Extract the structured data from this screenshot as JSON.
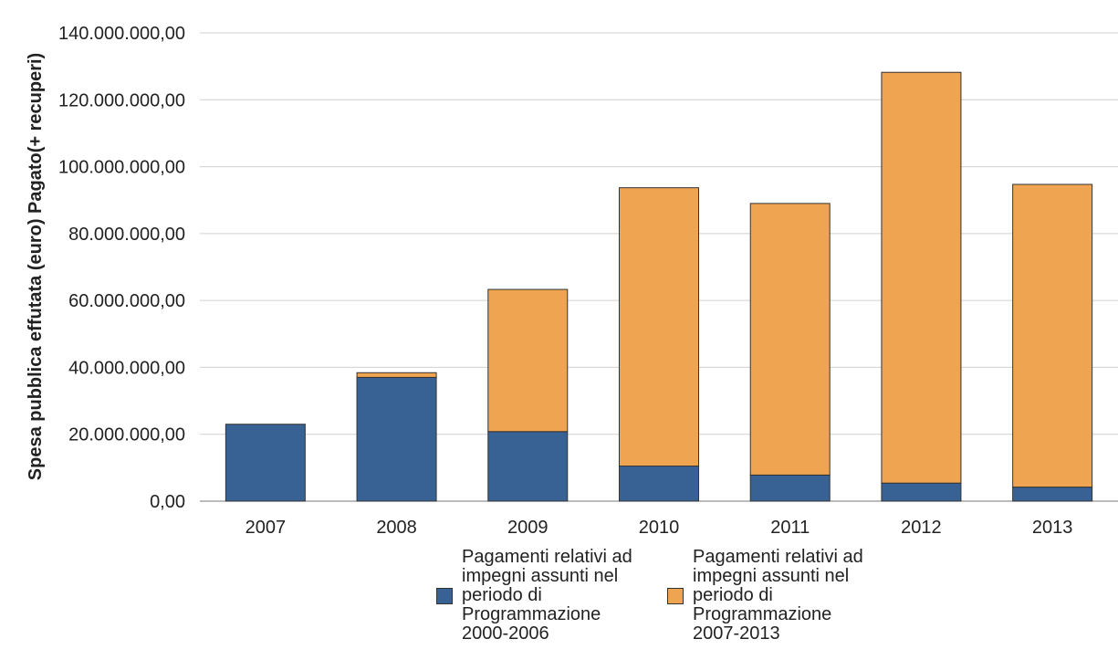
{
  "chart_data": {
    "type": "bar",
    "stacked": true,
    "title": "",
    "xlabel": "",
    "ylabel": "Spesa pubblica effutata (euro) Pagato(+ recuperi)",
    "ylim": [
      0,
      140000000
    ],
    "yticks": [
      "0,00",
      "20.000.000,00",
      "40.000.000,00",
      "60.000.000,00",
      "80.000.000,00",
      "100.000.000,00",
      "120.000.000,00",
      "140.000.000,00"
    ],
    "categories": [
      "2007",
      "2008",
      "2009",
      "2010",
      "2011",
      "2012",
      "2013"
    ],
    "grid": true,
    "legend_position": "bottom",
    "series": [
      {
        "name": "Pagamenti relativi ad impegni assunti nel periodo di Programmazione 2000-2006",
        "color": "#386294",
        "values": [
          23000000,
          37000000,
          20800000,
          10500000,
          7800000,
          5400000,
          4200000
        ]
      },
      {
        "name": "Pagamenti relativi ad impegni assunti nel periodo di Programmazione 2007-2013",
        "color": "#eea451",
        "values": [
          0,
          1400000,
          42500000,
          83200000,
          81200000,
          122800000,
          90500000
        ]
      }
    ]
  },
  "legend": {
    "item1_text": "Pagamenti relativi ad\nimpegni assunti nel\nperiodo di\nProgrammazione\n2000-2006",
    "item2_text": "Pagamenti relativi ad\nimpegni assunti nel\nperiodo di\nProgrammazione\n2007-2013"
  }
}
